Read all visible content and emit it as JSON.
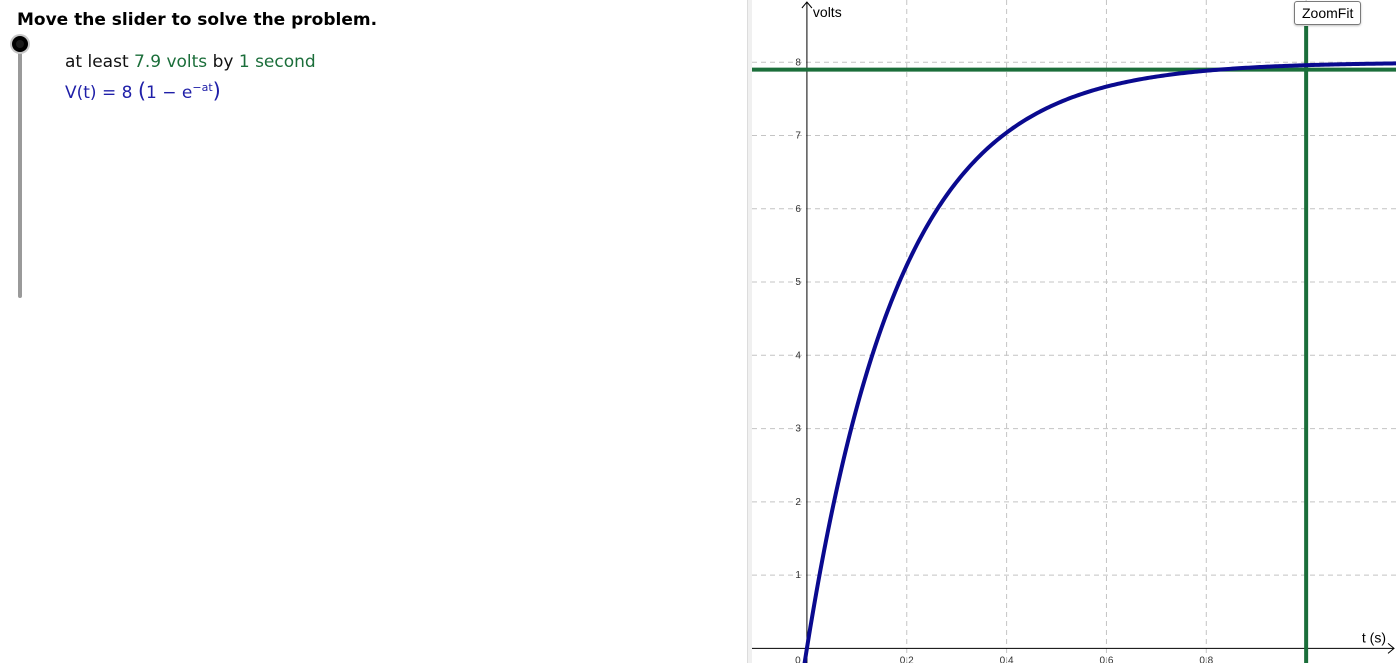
{
  "instruction": "Move the slider to solve the problem.",
  "slider": {
    "value_fraction": 1.0
  },
  "goal": {
    "prefix": "at least",
    "voltage": "7.9 volts",
    "middle": "by",
    "time": "1 second"
  },
  "formula": {
    "lhs": "V(t) = 8 ",
    "open_paren": "(",
    "body": "1 − e",
    "exponent": "−at",
    "close_paren": ")"
  },
  "toolbar": {
    "zoomfit_label": "ZoomFit"
  },
  "colors": {
    "curve": "#0a0a8f",
    "target_lines": "#1b6e3a",
    "grid": "#c4c4c4",
    "text_green": "#1b6e3a",
    "text_blue": "#1f1fa8"
  },
  "chart_data": {
    "type": "line",
    "xlabel": "t (s)",
    "ylabel": "volts",
    "x_ticks": [
      "0",
      "0.2",
      "0.4",
      "0.6",
      "0.8"
    ],
    "y_ticks": [
      "1",
      "2",
      "3",
      "4",
      "5",
      "6",
      "7",
      "8"
    ],
    "xlim": [
      -0.11,
      1.18
    ],
    "ylim": [
      -0.2,
      8.85
    ],
    "grid": true,
    "series": [
      {
        "formula": "8(1 - e^(-at))",
        "amplitude": 8,
        "rate_a": 5.3
      }
    ],
    "horizontal_line": {
      "y": 7.9
    },
    "vertical_line": {
      "x": 1
    }
  }
}
